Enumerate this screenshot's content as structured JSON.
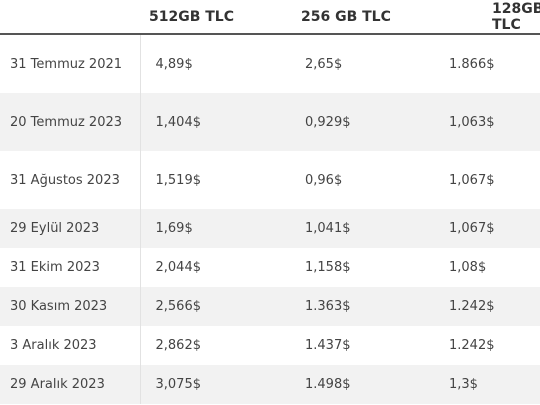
{
  "table": {
    "headers": [
      "",
      "512GB TLC",
      "256 GB TLC",
      "128GB TLC"
    ],
    "rows": [
      {
        "date": "31 Temmuz 2021",
        "v512": "4,89$",
        "v256": "2,65$",
        "v128": "1.866$"
      },
      {
        "date": "20 Temmuz 2023",
        "v512": "1,404$",
        "v256": "0,929$",
        "v128": "1,063$"
      },
      {
        "date": "31 Ağustos 2023",
        "v512": "1,519$",
        "v256": "0,96$",
        "v128": "1,067$"
      },
      {
        "date": "29 Eylül 2023",
        "v512": "1,69$",
        "v256": "1,041$",
        "v128": "1,067$"
      },
      {
        "date": "31 Ekim 2023",
        "v512": "2,044$",
        "v256": "1,158$",
        "v128": "1,08$"
      },
      {
        "date": "30 Kasım 2023",
        "v512": "2,566$",
        "v256": "1.363$",
        "v128": "1.242$"
      },
      {
        "date": "3 Aralık 2023",
        "v512": "2,862$",
        "v256": "1.437$",
        "v128": "1.242$"
      },
      {
        "date": "29 Aralık 2023",
        "v512": "3,075$",
        "v256": "1.498$",
        "v128": "1,3$"
      }
    ]
  }
}
